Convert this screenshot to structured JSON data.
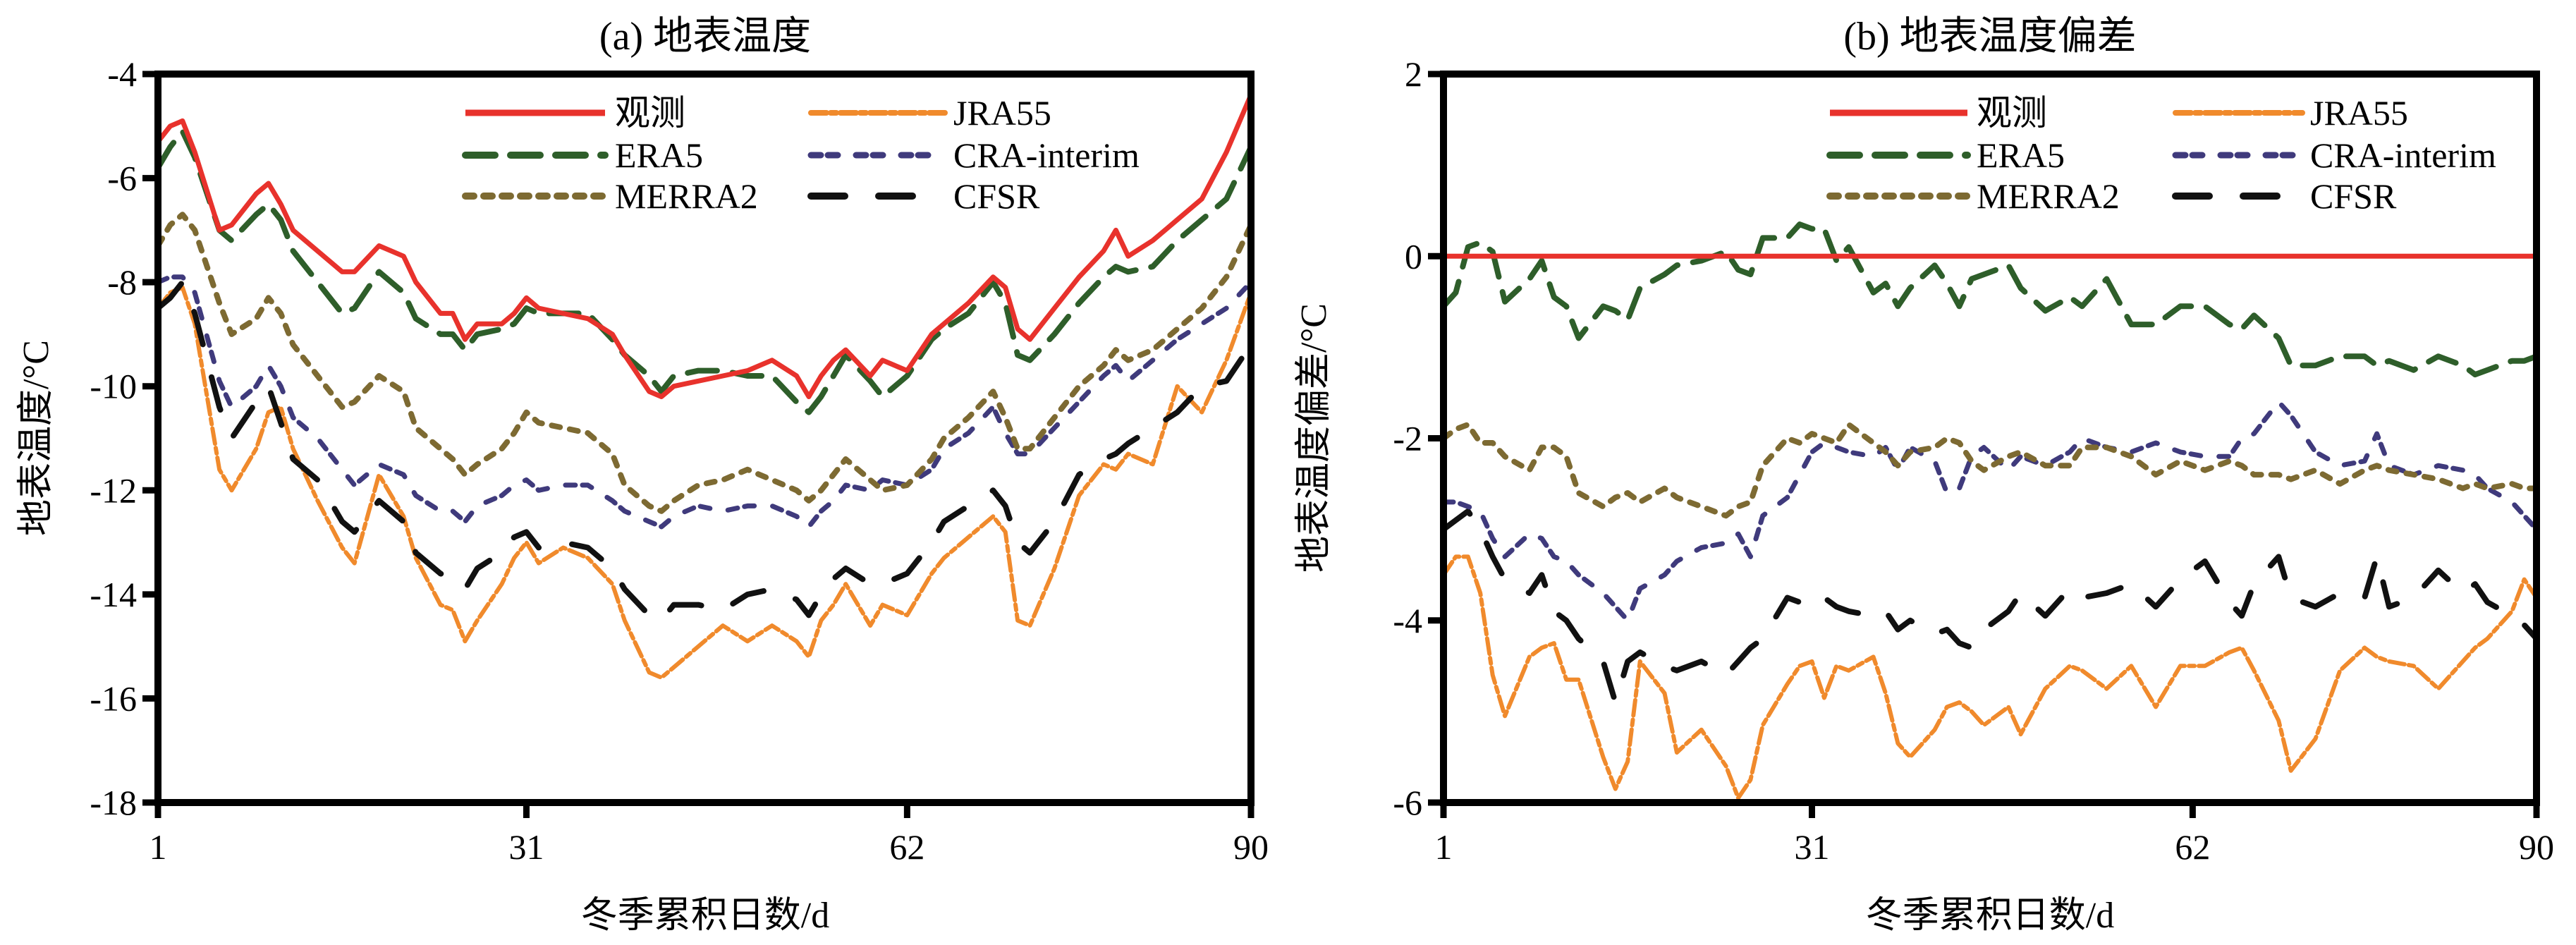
{
  "chart_data": [
    {
      "type": "line",
      "title": "(a) 地表温度",
      "xlabel": "冬季累积日数/d",
      "ylabel": "地表温度/°C",
      "xlim": [
        1,
        90
      ],
      "ylim": [
        -18,
        -4
      ],
      "xticks": [
        "1",
        "31",
        "62",
        "90"
      ],
      "yticks": [
        "-4",
        "-6",
        "-8",
        "-10",
        "-12",
        "-14",
        "-16",
        "-18"
      ],
      "legend": "top-center",
      "grid": false,
      "series_keys": [
        {
          "name": "观测",
          "color": "#e8322c",
          "style": "solid"
        },
        {
          "name": "ERA5",
          "color": "#2e5e2a",
          "style": "dash"
        },
        {
          "name": "MERRA2",
          "color": "#7d6a32",
          "style": "dot"
        },
        {
          "name": "JRA55",
          "color": "#f08a2c",
          "style": "dashdot"
        },
        {
          "name": "CRA-interim",
          "color": "#3f3a7c",
          "style": "shortdash"
        },
        {
          "name": "CFSR",
          "color": "#111111",
          "style": "longdash"
        }
      ],
      "anchors": {
        "x": [
          1,
          2,
          3,
          4,
          6,
          7,
          9,
          10,
          11,
          12,
          14,
          16,
          17,
          19,
          21,
          22,
          24,
          25,
          26,
          27,
          29,
          30,
          31,
          32,
          34,
          36,
          38,
          39,
          41,
          42,
          43,
          45,
          47,
          49,
          51,
          53,
          54,
          55,
          56,
          57,
          59,
          60,
          62,
          64,
          65,
          67,
          69,
          70,
          71,
          72,
          74,
          76,
          78,
          79,
          80,
          82,
          84,
          86,
          88,
          90
        ],
        "观测": [
          -5.3,
          -5.0,
          -4.9,
          -5.5,
          -7.0,
          -6.9,
          -6.3,
          -6.1,
          -6.5,
          -7.0,
          -7.4,
          -7.8,
          -7.8,
          -7.3,
          -7.5,
          -8.0,
          -8.6,
          -8.6,
          -9.1,
          -8.8,
          -8.8,
          -8.6,
          -8.3,
          -8.5,
          -8.6,
          -8.7,
          -9.0,
          -9.4,
          -10.1,
          -10.2,
          -10.0,
          -9.9,
          -9.8,
          -9.7,
          -9.5,
          -9.8,
          -10.2,
          -9.8,
          -9.5,
          -9.3,
          -9.8,
          -9.5,
          -9.7,
          -9.0,
          -8.8,
          -8.4,
          -7.9,
          -8.1,
          -8.9,
          -9.1,
          -8.5,
          -7.9,
          -7.4,
          -7.0,
          -7.5,
          -7.2,
          -6.8,
          -6.4,
          -5.5,
          -4.4
        ],
        "ERA5": [
          -5.8,
          -5.4,
          -5.1,
          -5.6,
          -7.0,
          -7.2,
          -6.7,
          -6.5,
          -6.8,
          -7.4,
          -8.0,
          -8.6,
          -8.5,
          -7.8,
          -8.2,
          -8.7,
          -9.0,
          -9.0,
          -9.3,
          -9.0,
          -8.9,
          -8.8,
          -8.5,
          -8.6,
          -8.6,
          -8.6,
          -9.1,
          -9.4,
          -9.8,
          -10.1,
          -9.8,
          -9.7,
          -9.7,
          -9.8,
          -9.8,
          -10.3,
          -10.5,
          -10.2,
          -9.8,
          -9.4,
          -9.9,
          -10.2,
          -9.8,
          -9.1,
          -8.9,
          -8.6,
          -8.0,
          -8.4,
          -9.4,
          -9.5,
          -9.0,
          -8.4,
          -7.9,
          -7.7,
          -7.8,
          -7.7,
          -7.2,
          -6.8,
          -6.4,
          -5.4
        ],
        "MERRA2": [
          -7.3,
          -6.9,
          -6.7,
          -7.0,
          -8.4,
          -9.0,
          -8.7,
          -8.3,
          -8.6,
          -9.2,
          -9.8,
          -10.4,
          -10.3,
          -9.8,
          -10.1,
          -10.8,
          -11.2,
          -11.4,
          -11.7,
          -11.5,
          -11.2,
          -10.9,
          -10.5,
          -10.7,
          -10.8,
          -10.9,
          -11.3,
          -11.9,
          -12.3,
          -12.4,
          -12.2,
          -11.9,
          -11.8,
          -11.6,
          -11.8,
          -12.0,
          -12.2,
          -12.0,
          -11.7,
          -11.4,
          -11.8,
          -12.0,
          -11.9,
          -11.4,
          -11.0,
          -10.6,
          -10.1,
          -10.6,
          -11.2,
          -11.2,
          -10.6,
          -10.0,
          -9.6,
          -9.3,
          -9.5,
          -9.3,
          -8.9,
          -8.5,
          -7.9,
          -6.9
        ],
        "JRA55": [
          -8.5,
          -8.2,
          -8.1,
          -8.8,
          -11.6,
          -12.0,
          -11.2,
          -10.5,
          -10.4,
          -11.2,
          -12.2,
          -13.1,
          -13.4,
          -11.7,
          -12.5,
          -13.3,
          -14.2,
          -14.3,
          -14.9,
          -14.5,
          -13.8,
          -13.3,
          -13.0,
          -13.4,
          -13.1,
          -13.3,
          -13.8,
          -14.5,
          -15.5,
          -15.6,
          -15.4,
          -15.0,
          -14.6,
          -14.9,
          -14.6,
          -14.9,
          -15.2,
          -14.5,
          -14.2,
          -13.8,
          -14.6,
          -14.2,
          -14.4,
          -13.6,
          -13.3,
          -12.9,
          -12.5,
          -12.8,
          -14.5,
          -14.6,
          -13.5,
          -12.1,
          -11.5,
          -11.6,
          -11.3,
          -11.5,
          -10.0,
          -10.5,
          -9.5,
          -8.2
        ],
        "CRA-interim": [
          -8.0,
          -7.9,
          -7.9,
          -8.2,
          -9.9,
          -10.4,
          -10.0,
          -9.6,
          -10.0,
          -10.6,
          -11.0,
          -11.6,
          -11.9,
          -11.5,
          -11.7,
          -12.1,
          -12.4,
          -12.4,
          -12.6,
          -12.3,
          -12.1,
          -11.9,
          -11.8,
          -12.0,
          -11.9,
          -11.9,
          -12.2,
          -12.4,
          -12.6,
          -12.7,
          -12.5,
          -12.3,
          -12.4,
          -12.3,
          -12.3,
          -12.5,
          -12.7,
          -12.4,
          -12.2,
          -11.9,
          -12.0,
          -11.8,
          -11.9,
          -11.6,
          -11.2,
          -10.9,
          -10.4,
          -10.9,
          -11.3,
          -11.3,
          -10.8,
          -10.3,
          -9.8,
          -9.6,
          -9.9,
          -9.5,
          -9.1,
          -8.8,
          -8.5,
          -8.0
        ],
        "CFSR": [
          -8.5,
          -8.3,
          -8.0,
          -8.6,
          -10.4,
          -11.0,
          -10.3,
          -10.0,
          -10.7,
          -11.4,
          -11.8,
          -12.6,
          -12.8,
          -12.2,
          -12.6,
          -13.2,
          -13.6,
          -13.7,
          -13.9,
          -13.5,
          -13.2,
          -12.9,
          -12.8,
          -13.1,
          -13.0,
          -13.1,
          -13.5,
          -13.9,
          -14.4,
          -14.5,
          -14.2,
          -14.2,
          -14.3,
          -14.0,
          -13.9,
          -14.1,
          -14.4,
          -14.0,
          -13.7,
          -13.5,
          -13.8,
          -13.8,
          -13.6,
          -13.0,
          -12.6,
          -12.3,
          -12.0,
          -12.3,
          -13.0,
          -13.2,
          -12.6,
          -11.7,
          -11.4,
          -11.3,
          -11.1,
          -10.8,
          -10.5,
          -10.0,
          -9.9,
          -9.2
        ]
      }
    },
    {
      "type": "line",
      "title": "(b) 地表温度偏差",
      "xlabel": "冬季累积日数/d",
      "ylabel": "地表温度偏差/°C",
      "xlim": [
        1,
        90
      ],
      "ylim": [
        -6,
        2
      ],
      "xticks": [
        "1",
        "31",
        "62",
        "90"
      ],
      "yticks": [
        "2",
        "0",
        "-2",
        "-4",
        "-6"
      ],
      "legend": "top-center",
      "grid": false,
      "series_keys": [
        {
          "name": "观测",
          "color": "#e8322c",
          "style": "solid"
        },
        {
          "name": "ERA5",
          "color": "#2e5e2a",
          "style": "dash"
        },
        {
          "name": "MERRA2",
          "color": "#7d6a32",
          "style": "dot"
        },
        {
          "name": "JRA55",
          "color": "#f08a2c",
          "style": "dashdot"
        },
        {
          "name": "CRA-interim",
          "color": "#3f3a7c",
          "style": "shortdash"
        },
        {
          "name": "CFSR",
          "color": "#111111",
          "style": "longdash"
        }
      ],
      "anchors": {
        "x": [
          1,
          2,
          3,
          4,
          5,
          6,
          8,
          9,
          10,
          11,
          12,
          14,
          15,
          16,
          17,
          19,
          20,
          22,
          24,
          25,
          26,
          27,
          29,
          30,
          31,
          32,
          33,
          34,
          36,
          37,
          38,
          39,
          41,
          42,
          43,
          44,
          45,
          47,
          48,
          50,
          52,
          53,
          55,
          57,
          59,
          61,
          63,
          65,
          66,
          67,
          69,
          70,
          72,
          74,
          76,
          77,
          78,
          80,
          82,
          84,
          85,
          86,
          88,
          89,
          90
        ],
        "观测": [
          0,
          0,
          0,
          0,
          0,
          0,
          0,
          0,
          0,
          0,
          0,
          0,
          0,
          0,
          0,
          0,
          0,
          0,
          0,
          0,
          0,
          0,
          0,
          0,
          0,
          0,
          0,
          0,
          0,
          0,
          0,
          0,
          0,
          0,
          0,
          0,
          0,
          0,
          0,
          0,
          0,
          0,
          0,
          0,
          0,
          0,
          0,
          0,
          0,
          0,
          0,
          0,
          0,
          0,
          0,
          0,
          0,
          0,
          0,
          0,
          0,
          0,
          0,
          0,
          0
        ],
        "ERA5": [
          -0.55,
          -0.4,
          0.1,
          0.15,
          0.05,
          -0.5,
          -0.25,
          -0.05,
          -0.45,
          -0.55,
          -0.9,
          -0.55,
          -0.6,
          -0.7,
          -0.35,
          -0.2,
          -0.1,
          -0.05,
          0.05,
          -0.15,
          -0.2,
          0.2,
          0.2,
          0.35,
          0.3,
          0.3,
          -0.05,
          0.1,
          -0.4,
          -0.3,
          -0.55,
          -0.35,
          -0.1,
          -0.3,
          -0.55,
          -0.25,
          -0.2,
          -0.1,
          -0.35,
          -0.6,
          -0.45,
          -0.55,
          -0.25,
          -0.75,
          -0.75,
          -0.55,
          -0.55,
          -0.75,
          -0.8,
          -0.65,
          -0.9,
          -1.2,
          -1.2,
          -1.1,
          -1.1,
          -1.2,
          -1.15,
          -1.25,
          -1.1,
          -1.2,
          -1.3,
          -1.25,
          -1.15,
          -1.15,
          -1.1
        ],
        "MERRA2": [
          -2.0,
          -1.9,
          -1.85,
          -2.05,
          -2.05,
          -2.2,
          -2.35,
          -2.1,
          -2.1,
          -2.2,
          -2.6,
          -2.75,
          -2.65,
          -2.6,
          -2.7,
          -2.55,
          -2.65,
          -2.75,
          -2.85,
          -2.75,
          -2.7,
          -2.3,
          -2.0,
          -2.05,
          -1.95,
          -2.0,
          -2.05,
          -1.85,
          -2.05,
          -2.15,
          -2.3,
          -2.15,
          -2.1,
          -2.0,
          -2.05,
          -2.25,
          -2.35,
          -2.2,
          -2.15,
          -2.3,
          -2.3,
          -2.1,
          -2.1,
          -2.2,
          -2.4,
          -2.25,
          -2.35,
          -2.25,
          -2.3,
          -2.4,
          -2.4,
          -2.45,
          -2.35,
          -2.5,
          -2.35,
          -2.3,
          -2.35,
          -2.4,
          -2.45,
          -2.55,
          -2.5,
          -2.55,
          -2.5,
          -2.55,
          -2.55
        ],
        "CRA-interim": [
          -2.7,
          -2.7,
          -2.75,
          -2.8,
          -3.1,
          -3.3,
          -3.05,
          -3.1,
          -3.3,
          -3.35,
          -3.5,
          -3.7,
          -3.85,
          -4.0,
          -3.65,
          -3.5,
          -3.35,
          -3.2,
          -3.15,
          -3.05,
          -3.3,
          -2.85,
          -2.65,
          -2.4,
          -2.15,
          -2.05,
          -2.1,
          -2.15,
          -2.2,
          -2.1,
          -2.35,
          -2.1,
          -2.25,
          -2.6,
          -2.55,
          -2.2,
          -2.1,
          -2.35,
          -2.2,
          -2.3,
          -2.15,
          -2.0,
          -2.1,
          -2.15,
          -2.05,
          -2.15,
          -2.2,
          -2.2,
          -2.0,
          -1.95,
          -1.6,
          -1.75,
          -2.15,
          -2.3,
          -2.25,
          -1.95,
          -2.3,
          -2.4,
          -2.3,
          -2.35,
          -2.4,
          -2.55,
          -2.7,
          -2.85,
          -3.0
        ],
        "CFSR": [
          -3.0,
          -2.9,
          -2.8,
          -3.0,
          -3.3,
          -3.55,
          -3.7,
          -3.5,
          -3.9,
          -4.0,
          -4.2,
          -4.45,
          -4.9,
          -4.45,
          -4.35,
          -4.5,
          -4.55,
          -4.45,
          -4.6,
          -4.45,
          -4.3,
          -4.2,
          -3.75,
          -3.8,
          -3.7,
          -3.75,
          -3.85,
          -3.9,
          -3.95,
          -3.9,
          -4.1,
          -4.0,
          -4.15,
          -4.1,
          -4.25,
          -4.3,
          -4.1,
          -3.9,
          -3.7,
          -3.95,
          -3.65,
          -3.75,
          -3.7,
          -3.6,
          -3.85,
          -3.55,
          -3.35,
          -3.8,
          -3.95,
          -3.6,
          -3.3,
          -3.75,
          -3.85,
          -3.7,
          -3.75,
          -3.3,
          -3.85,
          -3.75,
          -3.45,
          -3.7,
          -3.6,
          -3.8,
          -3.95,
          -4.05,
          -4.2
        ],
        "JRA55": [
          -3.5,
          -3.3,
          -3.3,
          -3.7,
          -4.6,
          -5.05,
          -4.4,
          -4.3,
          -4.25,
          -4.65,
          -4.65,
          -5.5,
          -5.85,
          -5.55,
          -4.45,
          -4.8,
          -5.45,
          -5.2,
          -5.6,
          -5.95,
          -5.75,
          -5.15,
          -4.7,
          -4.5,
          -4.45,
          -4.85,
          -4.5,
          -4.55,
          -4.4,
          -4.8,
          -5.35,
          -5.5,
          -5.2,
          -4.95,
          -4.9,
          -5.0,
          -5.15,
          -4.95,
          -5.25,
          -4.75,
          -4.5,
          -4.55,
          -4.75,
          -4.5,
          -4.95,
          -4.5,
          -4.5,
          -4.35,
          -4.3,
          -4.55,
          -5.1,
          -5.65,
          -5.3,
          -4.55,
          -4.3,
          -4.4,
          -4.45,
          -4.5,
          -4.75,
          -4.45,
          -4.3,
          -4.2,
          -3.9,
          -3.55,
          -3.75
        ]
      }
    }
  ],
  "panels": [
    {
      "title": "(a) 地表温度",
      "xlabel": "冬季累积日数/d",
      "ylabel": "地表温度/°C",
      "xticks": [
        "1",
        "31",
        "62",
        "90"
      ],
      "yticks": [
        "-4",
        "-6",
        "-8",
        "-10",
        "-12",
        "-14",
        "-16",
        "-18"
      ]
    },
    {
      "title": "(b) 地表温度偏差",
      "xlabel": "冬季累积日数/d",
      "ylabel": "地表温度偏差/°C",
      "xticks": [
        "1",
        "31",
        "62",
        "90"
      ],
      "yticks": [
        "2",
        "0",
        "-2",
        "-4",
        "-6"
      ]
    }
  ],
  "legend": {
    "items": [
      {
        "name": "观测",
        "color": "#e8322c"
      },
      {
        "name": "JRA55",
        "color": "#f08a2c"
      },
      {
        "name": "ERA5",
        "color": "#2e5e2a"
      },
      {
        "name": "CRA-interim",
        "color": "#3f3a7c"
      },
      {
        "name": "MERRA2",
        "color": "#7d6a32"
      },
      {
        "name": "CFSR",
        "color": "#111111"
      }
    ]
  }
}
